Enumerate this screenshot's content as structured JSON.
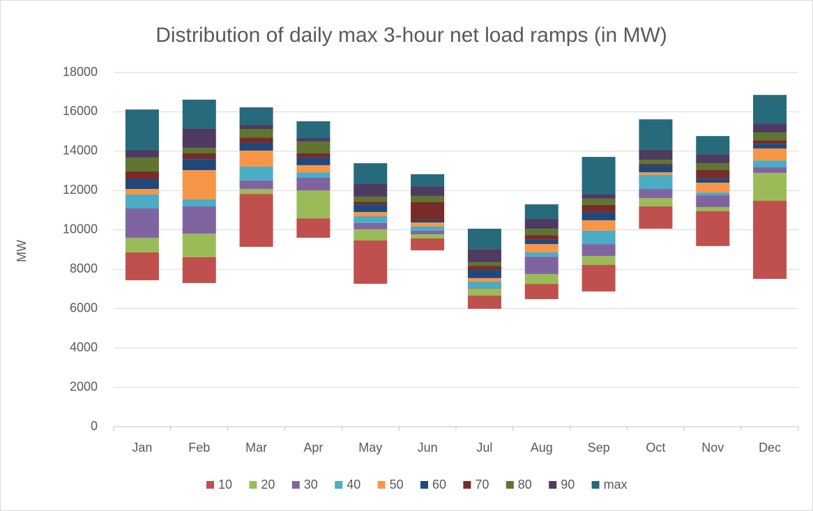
{
  "chart_data": {
    "type": "bar",
    "stacked": true,
    "title": "Distribution of daily max 3-hour net load ramps (in MW)",
    "y_label": "MW",
    "categories": [
      "Jan",
      "Feb",
      "Mar",
      "Apr",
      "May",
      "Jun",
      "Jul",
      "Aug",
      "Sep",
      "Oct",
      "Nov",
      "Dec"
    ],
    "base": [
      7440,
      7300,
      9140,
      9600,
      7260,
      8960,
      5990,
      6480,
      6870,
      10060,
      9180,
      7510
    ],
    "series": [
      {
        "name": "10",
        "color": "#c0504d",
        "values": [
          1420,
          1310,
          2690,
          990,
          2200,
          610,
          670,
          780,
          1350,
          1140,
          1770,
          3970
        ]
      },
      {
        "name": "20",
        "color": "#9bbb59",
        "values": [
          740,
          1200,
          250,
          1420,
          570,
          210,
          360,
          500,
          460,
          420,
          210,
          1420
        ]
      },
      {
        "name": "30",
        "color": "#8064a2",
        "values": [
          1490,
          1390,
          430,
          640,
          320,
          180,
          30,
          880,
          600,
          460,
          600,
          280
        ]
      },
      {
        "name": "40",
        "color": "#4bacc6",
        "values": [
          710,
          350,
          710,
          280,
          350,
          210,
          320,
          220,
          680,
          710,
          140,
          350
        ]
      },
      {
        "name": "50",
        "color": "#f79646",
        "values": [
          280,
          1490,
          810,
          360,
          210,
          210,
          180,
          420,
          530,
          140,
          500,
          610
        ]
      },
      {
        "name": "60",
        "color": "#1f497d",
        "values": [
          500,
          560,
          390,
          390,
          390,
          110,
          420,
          220,
          390,
          360,
          210,
          240
        ]
      },
      {
        "name": "70",
        "color": "#772c2a",
        "values": [
          390,
          290,
          280,
          210,
          140,
          920,
          210,
          240,
          390,
          70,
          430,
          180
        ]
      },
      {
        "name": "80",
        "color": "#5f7530",
        "values": [
          710,
          280,
          430,
          600,
          250,
          320,
          180,
          320,
          320,
          210,
          350,
          390
        ]
      },
      {
        "name": "90",
        "color": "#4d3b62",
        "values": [
          390,
          990,
          210,
          180,
          640,
          490,
          670,
          500,
          240,
          500,
          460,
          460
        ]
      },
      {
        "name": "max",
        "color": "#276a7c",
        "values": [
          2050,
          1460,
          890,
          850,
          1060,
          610,
          1030,
          740,
          1880,
          1550,
          920,
          1450
        ]
      }
    ],
    "ylim": [
      0,
      18000
    ],
    "yticks": [
      0,
      2000,
      4000,
      6000,
      8000,
      10000,
      12000,
      14000,
      16000,
      18000
    ],
    "grid": true,
    "legend": "bottom"
  }
}
